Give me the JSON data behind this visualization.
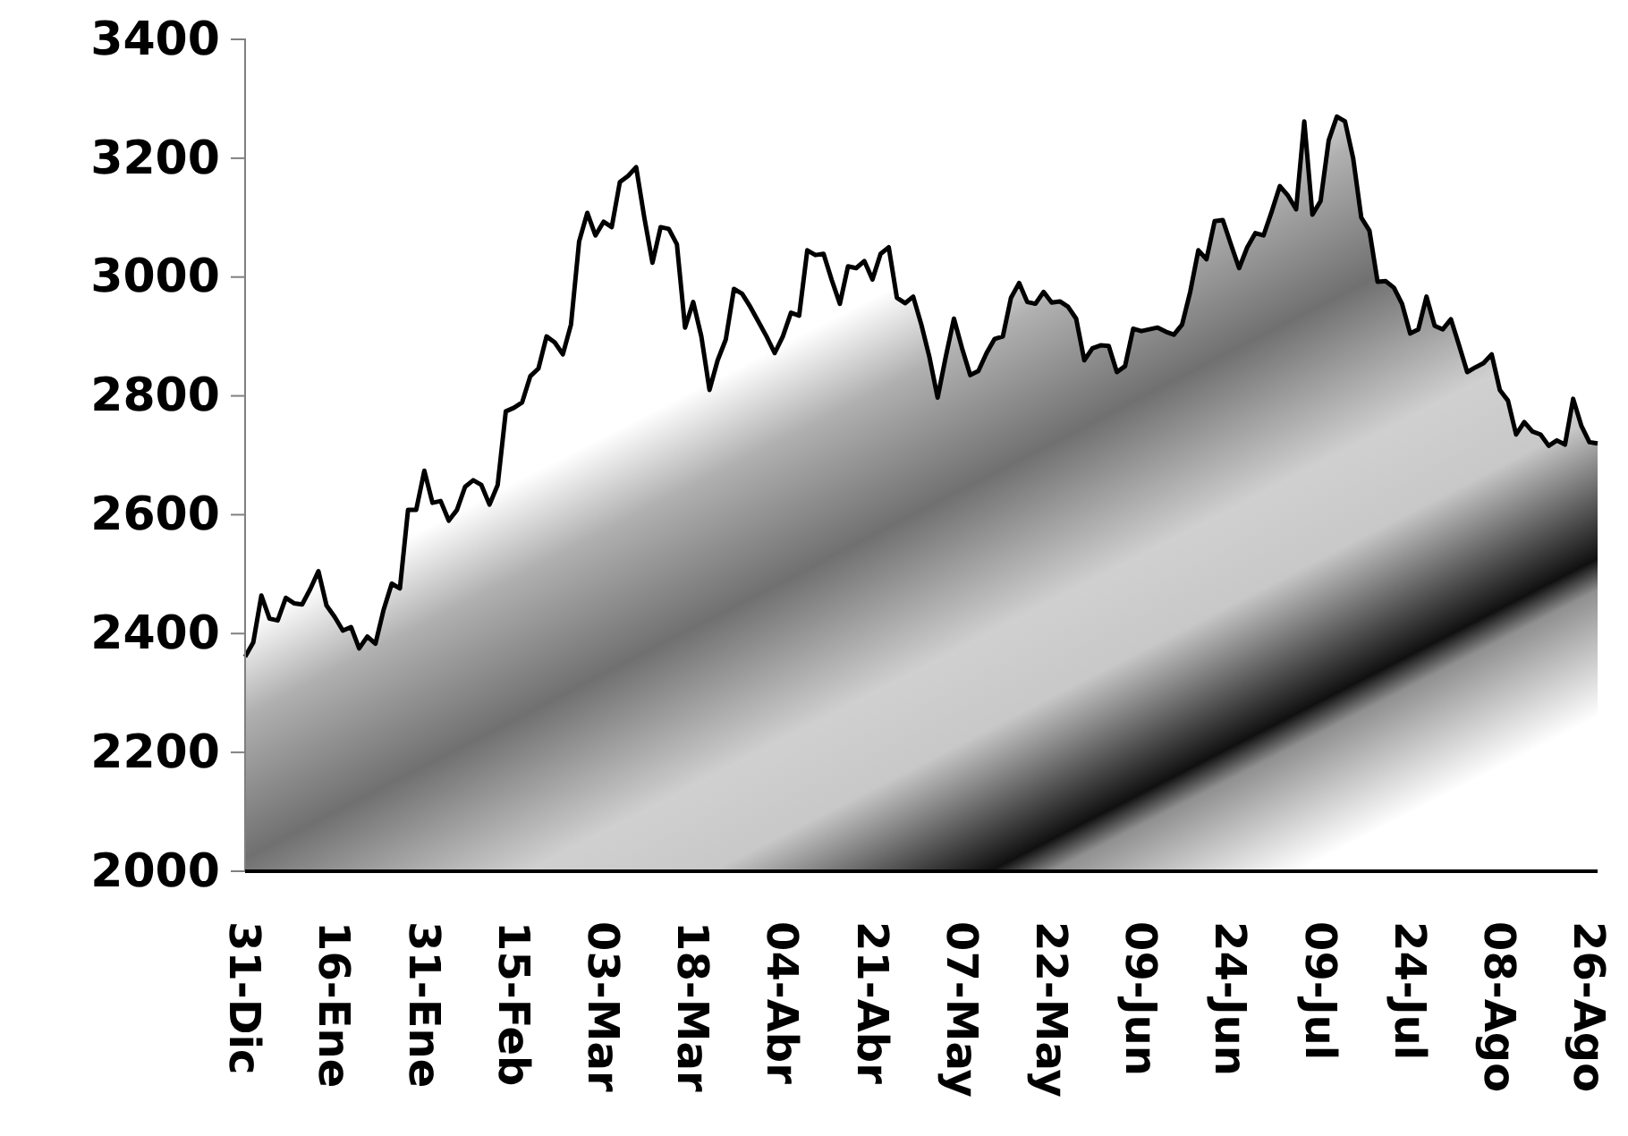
{
  "chart_data": {
    "type": "area",
    "categories": [
      "31-Dic",
      null,
      null,
      null,
      null,
      null,
      null,
      null,
      null,
      null,
      null,
      "16-Ene",
      null,
      null,
      null,
      null,
      null,
      null,
      null,
      null,
      null,
      null,
      "31-Ene",
      null,
      null,
      null,
      null,
      null,
      null,
      null,
      null,
      null,
      null,
      "15-Feb",
      null,
      null,
      null,
      null,
      null,
      null,
      null,
      null,
      null,
      null,
      "03-Mar",
      null,
      null,
      null,
      null,
      null,
      null,
      null,
      null,
      null,
      null,
      "18-Mar",
      null,
      null,
      null,
      null,
      null,
      null,
      null,
      null,
      null,
      null,
      "04-Abr",
      null,
      null,
      null,
      null,
      null,
      null,
      null,
      null,
      null,
      null,
      "21-Abr",
      null,
      null,
      null,
      null,
      null,
      null,
      null,
      null,
      null,
      null,
      "07-May",
      null,
      null,
      null,
      null,
      null,
      null,
      null,
      null,
      null,
      null,
      "22-May",
      null,
      null,
      null,
      null,
      null,
      null,
      null,
      null,
      null,
      null,
      "09-Jun",
      null,
      null,
      null,
      null,
      null,
      null,
      null,
      null,
      null,
      null,
      "24-Jun",
      null,
      null,
      null,
      null,
      null,
      null,
      null,
      null,
      null,
      null,
      "09-Jul",
      null,
      null,
      null,
      null,
      null,
      null,
      null,
      null,
      null,
      null,
      "24-Jul",
      null,
      null,
      null,
      null,
      null,
      null,
      null,
      null,
      null,
      null,
      "08-Ago",
      null,
      null,
      null,
      null,
      null,
      null,
      null,
      null,
      null,
      null,
      "26-Ago",
      null
    ],
    "series": [
      {
        "color": "#000000",
        "values": [
          2361,
          2385,
          2464,
          2425,
          2422,
          2460,
          2451,
          2449,
          2475,
          2505,
          2447,
          2428,
          2405,
          2411,
          2375,
          2395,
          2383,
          2440,
          2484,
          2476,
          2608,
          2608,
          2674,
          2620,
          2623,
          2590,
          2608,
          2647,
          2658,
          2650,
          2617,
          2650,
          2774,
          2780,
          2789,
          2833,
          2846,
          2900,
          2890,
          2870,
          2920,
          3060,
          3108,
          3070,
          3093,
          3084,
          3160,
          3170,
          3185,
          3100,
          3024,
          3084,
          3081,
          3055,
          2915,
          2958,
          2900,
          2810,
          2860,
          2895,
          2980,
          2972,
          2950,
          2925,
          2900,
          2872,
          2900,
          2940,
          2935,
          3045,
          3037,
          3039,
          2995,
          2955,
          3018,
          3015,
          3027,
          2996,
          3039,
          3050,
          2965,
          2956,
          2967,
          2920,
          2865,
          2797,
          2866,
          2930,
          2880,
          2835,
          2842,
          2872,
          2896,
          2900,
          2965,
          2990,
          2958,
          2955,
          2975,
          2957,
          2959,
          2950,
          2930,
          2860,
          2880,
          2885,
          2884,
          2840,
          2850,
          2913,
          2909,
          2912,
          2915,
          2908,
          2903,
          2920,
          2975,
          3045,
          3030,
          3094,
          3096,
          3055,
          3015,
          3050,
          3074,
          3070,
          3110,
          3153,
          3137,
          3114,
          3262,
          3105,
          3128,
          3230,
          3270,
          3262,
          3200,
          3100,
          3078,
          2992,
          2993,
          2982,
          2955,
          2905,
          2912,
          2967,
          2918,
          2912,
          2929,
          2885,
          2840,
          2848,
          2855,
          2870,
          2810,
          2792,
          2735,
          2756,
          2740,
          2735,
          2716,
          2725,
          2718,
          2795,
          2750,
          2722,
          2720
        ]
      }
    ],
    "ylim": [
      2000,
      3400
    ],
    "yticks": [
      2000,
      2200,
      2400,
      2600,
      2800,
      3000,
      3200,
      3400
    ]
  }
}
